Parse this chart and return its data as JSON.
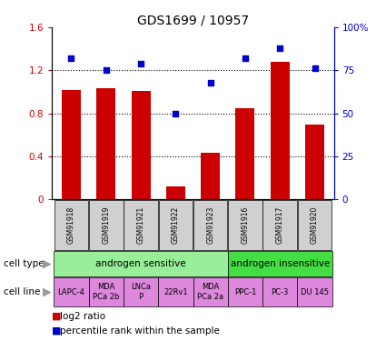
{
  "title": "GDS1699 / 10957",
  "samples": [
    "GSM91918",
    "GSM91919",
    "GSM91921",
    "GSM91922",
    "GSM91923",
    "GSM91916",
    "GSM91917",
    "GSM91920"
  ],
  "log2_ratio": [
    1.02,
    1.03,
    1.01,
    0.12,
    0.43,
    0.85,
    1.28,
    0.7
  ],
  "percentile_rank": [
    82,
    75,
    79,
    50,
    68,
    82,
    88,
    76
  ],
  "bar_color": "#cc0000",
  "dot_color": "#0000cc",
  "ylim_left": [
    0,
    1.6
  ],
  "ylim_right": [
    0,
    100
  ],
  "yticks_left": [
    0,
    0.4,
    0.8,
    1.2,
    1.6
  ],
  "yticks_right": [
    0,
    25,
    50,
    75,
    100
  ],
  "ytick_labels_left": [
    "0",
    "0.4",
    "0.8",
    "1.2",
    "1.6"
  ],
  "ytick_labels_right": [
    "0",
    "25",
    "50",
    "75",
    "100%"
  ],
  "hgrid_vals": [
    0.4,
    0.8,
    1.2
  ],
  "cell_type_groups": [
    {
      "label": "androgen sensitive",
      "span": [
        0,
        5
      ],
      "color": "#99ee99"
    },
    {
      "label": "androgen insensitive",
      "span": [
        5,
        8
      ],
      "color": "#44dd44"
    }
  ],
  "cell_lines": [
    {
      "label": "LAPC-4",
      "span": [
        0,
        1
      ]
    },
    {
      "label": "MDA\nPCa 2b",
      "span": [
        1,
        2
      ]
    },
    {
      "label": "LNCa\nP",
      "span": [
        2,
        3
      ]
    },
    {
      "label": "22Rv1",
      "span": [
        3,
        4
      ]
    },
    {
      "label": "MDA\nPCa 2a",
      "span": [
        4,
        5
      ]
    },
    {
      "label": "PPC-1",
      "span": [
        5,
        6
      ]
    },
    {
      "label": "PC-3",
      "span": [
        6,
        7
      ]
    },
    {
      "label": "DU 145",
      "span": [
        7,
        8
      ]
    }
  ],
  "cell_line_color": "#dd88dd",
  "tick_label_color_left": "#cc0000",
  "tick_label_color_right": "#0000cc",
  "bg_color": "#ffffff",
  "sample_box_color": "#d0d0d0"
}
